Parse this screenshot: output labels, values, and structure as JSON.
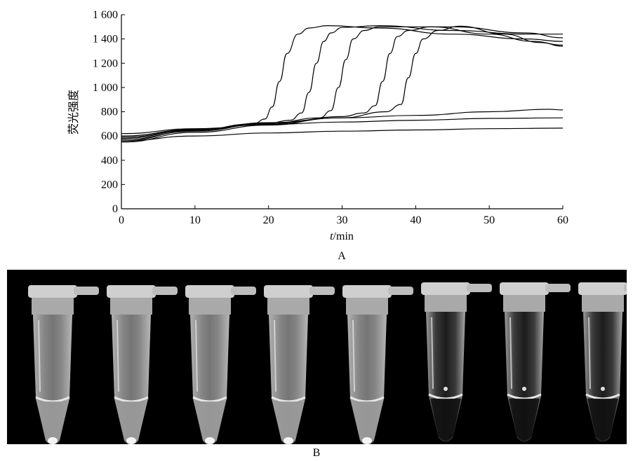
{
  "chart_data": {
    "type": "line",
    "panel_label": "A",
    "xlabel_italic": "t",
    "xlabel_unit": "/min",
    "ylabel": "荧光强度",
    "xlim": [
      0,
      60
    ],
    "ylim": [
      0,
      1600
    ],
    "x_ticks": [
      "0",
      "10",
      "20",
      "30",
      "40",
      "50",
      "60"
    ],
    "y_ticks": [
      "0",
      "200",
      "400",
      "600",
      "800",
      "1 000",
      "1 200",
      "1 400",
      "1 600"
    ],
    "grid": false,
    "series": [
      {
        "points": [
          [
            0,
            560
          ],
          [
            10,
            645
          ],
          [
            18,
            700
          ],
          [
            19.5,
            740
          ],
          [
            20.5,
            840
          ],
          [
            21.5,
            1050
          ],
          [
            22.5,
            1280
          ],
          [
            24,
            1440
          ],
          [
            25.5,
            1490
          ],
          [
            28,
            1510
          ],
          [
            35,
            1490
          ],
          [
            45,
            1440
          ],
          [
            55,
            1400
          ],
          [
            60,
            1380
          ]
        ]
      },
      {
        "points": [
          [
            0,
            570
          ],
          [
            10,
            640
          ],
          [
            20,
            705
          ],
          [
            23,
            730
          ],
          [
            24.5,
            790
          ],
          [
            25.5,
            960
          ],
          [
            26.5,
            1200
          ],
          [
            27.5,
            1380
          ],
          [
            28.5,
            1450
          ],
          [
            30,
            1495
          ],
          [
            35,
            1510
          ],
          [
            45,
            1470
          ],
          [
            55,
            1440
          ],
          [
            60,
            1440
          ]
        ]
      },
      {
        "points": [
          [
            0,
            580
          ],
          [
            10,
            650
          ],
          [
            20,
            700
          ],
          [
            27,
            750
          ],
          [
            28.5,
            810
          ],
          [
            29.5,
            1000
          ],
          [
            30.5,
            1230
          ],
          [
            31.5,
            1400
          ],
          [
            33,
            1470
          ],
          [
            35,
            1500
          ],
          [
            45,
            1500
          ],
          [
            55,
            1450
          ],
          [
            60,
            1410
          ]
        ]
      },
      {
        "points": [
          [
            0,
            550
          ],
          [
            10,
            630
          ],
          [
            20,
            690
          ],
          [
            30,
            760
          ],
          [
            33,
            790
          ],
          [
            34.5,
            850
          ],
          [
            35.5,
            1050
          ],
          [
            36.5,
            1280
          ],
          [
            37.5,
            1420
          ],
          [
            39,
            1470
          ],
          [
            42,
            1500
          ],
          [
            50,
            1440
          ],
          [
            56,
            1380
          ],
          [
            60,
            1350
          ]
        ]
      },
      {
        "points": [
          [
            0,
            600
          ],
          [
            10,
            655
          ],
          [
            20,
            700
          ],
          [
            30,
            750
          ],
          [
            36,
            800
          ],
          [
            38,
            860
          ],
          [
            39,
            1080
          ],
          [
            40,
            1280
          ],
          [
            41,
            1400
          ],
          [
            43,
            1470
          ],
          [
            46,
            1505
          ],
          [
            52,
            1440
          ],
          [
            57,
            1370
          ],
          [
            60,
            1340
          ]
        ]
      },
      {
        "points": [
          [
            0,
            590
          ],
          [
            10,
            650
          ],
          [
            20,
            710
          ],
          [
            30,
            750
          ],
          [
            40,
            770
          ],
          [
            50,
            800
          ],
          [
            58,
            820
          ],
          [
            60,
            815
          ]
        ]
      },
      {
        "points": [
          [
            0,
            620
          ],
          [
            10,
            660
          ],
          [
            20,
            695
          ],
          [
            30,
            715
          ],
          [
            40,
            730
          ],
          [
            50,
            745
          ],
          [
            60,
            750
          ]
        ]
      },
      {
        "points": [
          [
            0,
            560
          ],
          [
            10,
            600
          ],
          [
            20,
            625
          ],
          [
            30,
            640
          ],
          [
            40,
            650
          ],
          [
            50,
            660
          ],
          [
            60,
            665
          ]
        ]
      }
    ]
  },
  "figure_b": {
    "panel_label": "B",
    "tubes": [
      {
        "bright_pellet": true
      },
      {
        "bright_pellet": true
      },
      {
        "bright_pellet": true
      },
      {
        "bright_pellet": true
      },
      {
        "bright_pellet": true
      },
      {
        "bright_pellet": false
      },
      {
        "bright_pellet": false
      },
      {
        "bright_pellet": false
      }
    ]
  }
}
